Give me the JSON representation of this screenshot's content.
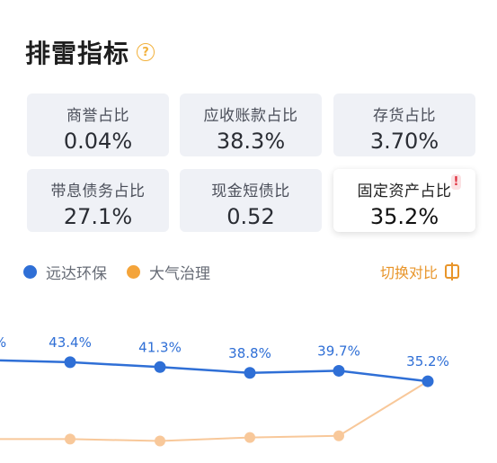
{
  "header": {
    "title": "排雷指标",
    "help_symbol": "?"
  },
  "metrics": [
    {
      "label": "商誉占比",
      "value": "0.04%"
    },
    {
      "label": "应收账款占比",
      "value": "38.3%"
    },
    {
      "label": "存货占比",
      "value": "3.70%"
    },
    {
      "label": "带息债务占比",
      "value": "27.1%"
    },
    {
      "label": "现金短债比",
      "value": "0.52"
    },
    {
      "label": "固定资产占比",
      "value": "35.2%",
      "selected": true,
      "alert": "!"
    }
  ],
  "legend": [
    {
      "name": "远达环保",
      "color": "#2f6fd6"
    },
    {
      "name": "大气治理",
      "color": "#f4a43a"
    }
  ],
  "switch_button": {
    "label": "切换对比"
  },
  "chart_data": {
    "type": "line",
    "series": [
      {
        "name": "远达环保",
        "color": "#2f6fd6",
        "values": [
          43.4,
          41.3,
          38.8,
          39.7,
          35.2
        ],
        "labels": [
          "43.4%",
          "41.3%",
          "38.8%",
          "39.7%",
          "35.2%"
        ]
      },
      {
        "name": "大气治理",
        "color": "#f8c89a",
        "values": [
          10.3,
          9.5,
          11.0,
          11.7,
          35.2
        ]
      }
    ],
    "ylim": [
      0,
      60
    ],
    "grid": false,
    "partial_left_label": "%"
  }
}
